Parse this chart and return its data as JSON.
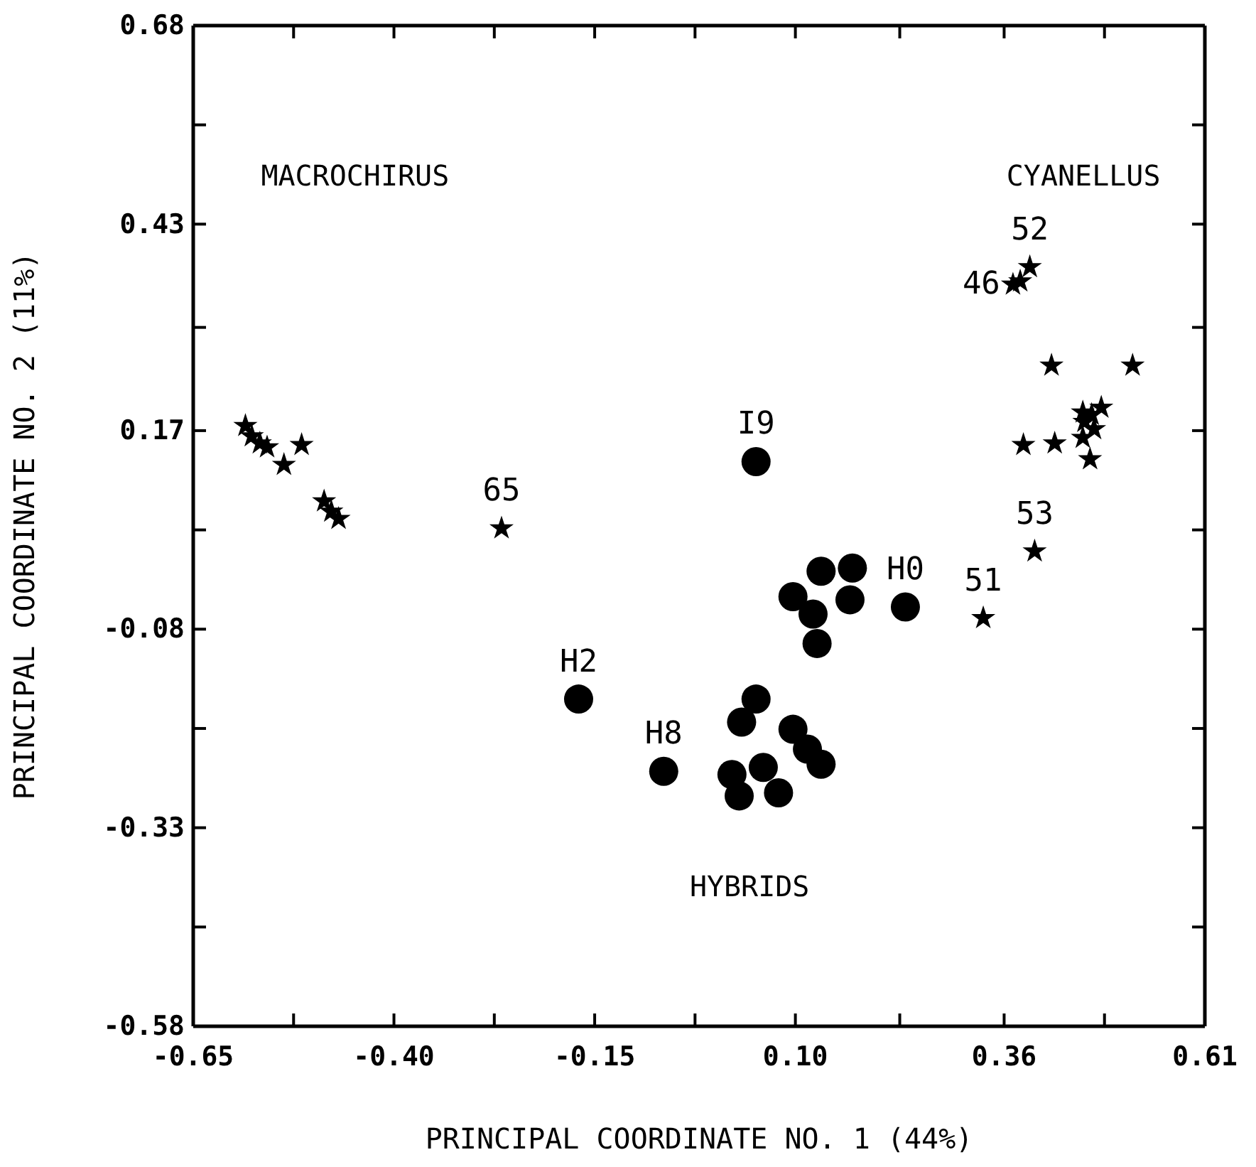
{
  "chart_data": {
    "type": "scatter",
    "xlabel": "PRINCIPAL COORDINATE NO. 1 (44%)",
    "ylabel": "PRINCIPAL COORDINATE NO. 2 (11%)",
    "xlim": [
      -0.65,
      0.61
    ],
    "ylim": [
      -0.58,
      0.68
    ],
    "xticks": [
      {
        "value": -0.65,
        "label": "-0.65"
      },
      {
        "value": -0.525,
        "label": null
      },
      {
        "value": -0.4,
        "label": "-0.40"
      },
      {
        "value": -0.275,
        "label": null
      },
      {
        "value": -0.15,
        "label": "-0.15"
      },
      {
        "value": -0.025,
        "label": null
      },
      {
        "value": 0.1,
        "label": "0.10"
      },
      {
        "value": 0.23,
        "label": null
      },
      {
        "value": 0.36,
        "label": "0.36"
      },
      {
        "value": 0.485,
        "label": null
      },
      {
        "value": 0.61,
        "label": "0.61"
      }
    ],
    "yticks": [
      {
        "value": -0.58,
        "label": "-0.58"
      },
      {
        "value": -0.455,
        "label": null
      },
      {
        "value": -0.33,
        "label": "-0.33"
      },
      {
        "value": -0.205,
        "label": null
      },
      {
        "value": -0.08,
        "label": "-0.08"
      },
      {
        "value": 0.045,
        "label": null
      },
      {
        "value": 0.17,
        "label": "0.17"
      },
      {
        "value": 0.3,
        "label": null
      },
      {
        "value": 0.43,
        "label": "0.43"
      },
      {
        "value": 0.555,
        "label": null
      },
      {
        "value": 0.68,
        "label": "0.68"
      }
    ],
    "grid": false,
    "series": [
      {
        "color": "#000000",
        "marker": "star",
        "x": [
          -0.585,
          -0.577,
          -0.567,
          -0.558,
          -0.537,
          -0.515,
          -0.487,
          -0.478,
          -0.469,
          -0.266,
          0.371,
          0.38,
          0.392,
          0.419,
          0.52,
          0.458,
          0.469,
          0.481,
          0.46,
          0.472,
          0.458,
          0.467,
          0.384,
          0.423,
          0.398,
          0.334
        ],
        "values": [
          0.176,
          0.163,
          0.154,
          0.149,
          0.127,
          0.152,
          0.081,
          0.068,
          0.059,
          0.047,
          0.354,
          0.358,
          0.376,
          0.252,
          0.252,
          0.193,
          0.19,
          0.199,
          0.181,
          0.172,
          0.161,
          0.134,
          0.152,
          0.154,
          0.018,
          -0.066
        ]
      },
      {
        "color": "#000000",
        "marker": "circle",
        "x": [
          0.051,
          0.237,
          0.132,
          0.171,
          0.168,
          0.097,
          0.122,
          0.127,
          -0.17,
          -0.064,
          0.051,
          0.033,
          0.097,
          0.115,
          0.132,
          0.021,
          0.06,
          0.03,
          0.079
        ],
        "values": [
          0.131,
          -0.052,
          -0.007,
          -0.003,
          -0.043,
          -0.039,
          -0.061,
          -0.098,
          -0.168,
          -0.259,
          -0.168,
          -0.197,
          -0.206,
          -0.231,
          -0.25,
          -0.263,
          -0.254,
          -0.29,
          -0.286
        ]
      }
    ],
    "annotations": [
      "MACROCHIRUS",
      "CYANELLUS",
      "HYBRIDS",
      {
        "text": "I9",
        "x": 0.051,
        "y": 0.131
      },
      {
        "text": "H0",
        "x": 0.237,
        "y": -0.052
      },
      {
        "text": "H2",
        "x": -0.17,
        "y": -0.168
      },
      {
        "text": "H8",
        "x": -0.064,
        "y": -0.259
      },
      {
        "text": "65",
        "x": -0.266,
        "y": 0.047
      },
      {
        "text": "46",
        "x": 0.371,
        "y": 0.354
      },
      {
        "text": "52",
        "x": 0.392,
        "y": 0.376
      },
      {
        "text": "53",
        "x": 0.398,
        "y": 0.018
      },
      {
        "text": "51",
        "x": 0.334,
        "y": -0.066
      }
    ]
  }
}
